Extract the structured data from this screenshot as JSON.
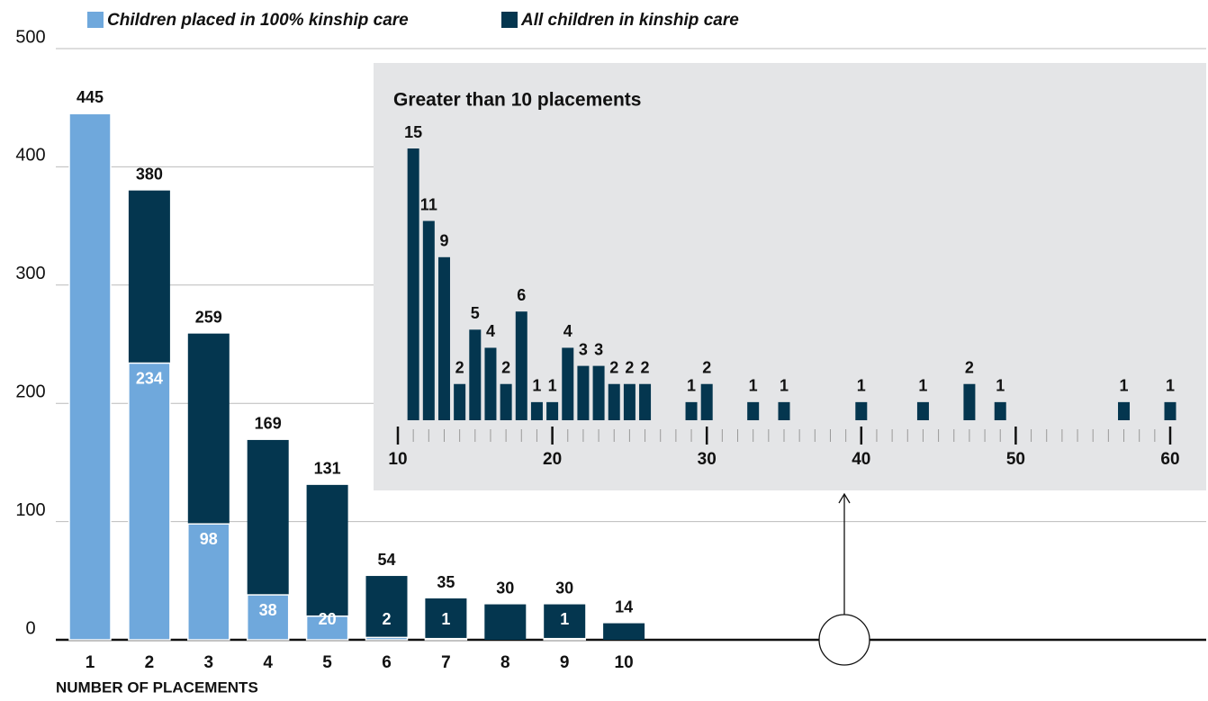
{
  "chart_data": [
    {
      "type": "bar",
      "bar_mode": "overlay",
      "categories": [
        "1",
        "2",
        "3",
        "4",
        "5",
        "6",
        "7",
        "8",
        "9",
        "10"
      ],
      "series": [
        {
          "name": "Children placed in 100% kinship care",
          "color": "#6fa8dc",
          "values": [
            445,
            234,
            98,
            38,
            20,
            2,
            1,
            null,
            1,
            null
          ]
        },
        {
          "name": "All children in kinship care",
          "color": "#04364f",
          "values": [
            445,
            380,
            259,
            169,
            131,
            54,
            35,
            30,
            30,
            14
          ]
        }
      ],
      "x_label": "NUMBER OF PLACEMENTS",
      "ylim": [
        0,
        500
      ],
      "yticks": [
        0,
        100,
        200,
        300,
        400,
        500
      ],
      "grid": true
    },
    {
      "type": "bar",
      "title": "Greater than 10 placements",
      "x": [
        11,
        12,
        13,
        14,
        15,
        16,
        17,
        18,
        19,
        20,
        21,
        22,
        23,
        24,
        25,
        26,
        29,
        30,
        33,
        35,
        40,
        44,
        47,
        49,
        57,
        60
      ],
      "values": [
        15,
        11,
        9,
        2,
        5,
        4,
        2,
        6,
        1,
        1,
        4,
        3,
        3,
        2,
        2,
        2,
        1,
        2,
        1,
        1,
        1,
        1,
        2,
        1,
        1,
        1
      ],
      "color": "#04364f",
      "xlim": [
        10,
        60
      ],
      "xticks": [
        10,
        20,
        30,
        40,
        50,
        60
      ],
      "ylim": [
        0,
        15
      ]
    }
  ]
}
